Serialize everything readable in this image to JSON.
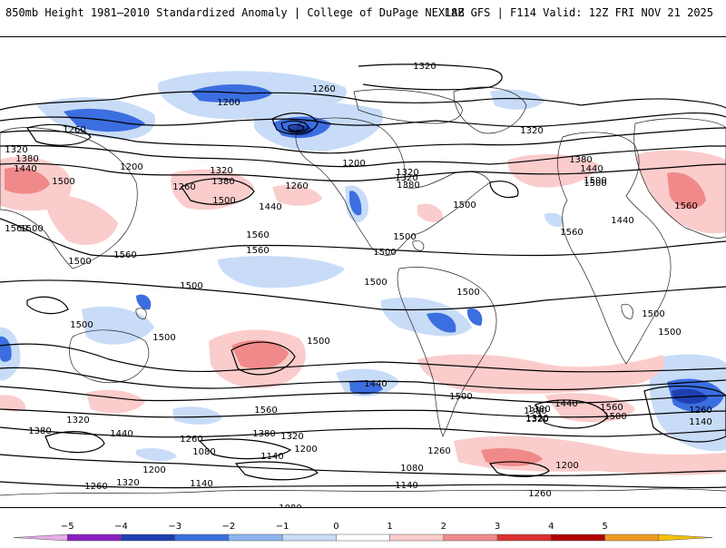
{
  "header": {
    "title": "850mb Height 1981–2010 Standardized Anomaly | College of DuPage NEXLAB",
    "valid": "18Z GFS | F114 Valid: 12Z FRI NOV 21 2025"
  },
  "colorbar": {
    "ticks": [
      "−5",
      "−4",
      "−3",
      "−2",
      "−1",
      "0",
      "1",
      "2",
      "3",
      "4",
      "5"
    ],
    "colors": [
      "#e7aee8",
      "#8a1fc4",
      "#1e3fb0",
      "#3b6ee0",
      "#8db4f0",
      "#c8dcf8",
      "#ffffff",
      "#fbcccc",
      "#f08a8a",
      "#d93030",
      "#b00000",
      "#f09a20",
      "#f5c000"
    ]
  },
  "contour_labels": [
    {
      "t": "1320"
    },
    {
      "t": "1260"
    },
    {
      "t": "1260"
    },
    {
      "t": "1200"
    },
    {
      "t": "1200"
    },
    {
      "t": "1320"
    },
    {
      "t": "1380"
    },
    {
      "t": "1440"
    },
    {
      "t": "1500"
    },
    {
      "t": "1260"
    },
    {
      "t": "1320"
    },
    {
      "t": "1380"
    },
    {
      "t": "1260"
    },
    {
      "t": "1200"
    },
    {
      "t": "1320"
    },
    {
      "t": "1380"
    },
    {
      "t": "1440"
    },
    {
      "t": "1500"
    },
    {
      "t": "1320"
    },
    {
      "t": "1320"
    },
    {
      "t": "1380"
    },
    {
      "t": "1500"
    },
    {
      "t": "1440"
    },
    {
      "t": "1560"
    },
    {
      "t": "1560"
    },
    {
      "t": "1560"
    },
    {
      "t": "1500"
    },
    {
      "t": "1500"
    },
    {
      "t": "1560"
    },
    {
      "t": "1560"
    },
    {
      "t": "1560"
    },
    {
      "t": "1500"
    },
    {
      "t": "1500"
    },
    {
      "t": "1500"
    },
    {
      "t": "1440"
    },
    {
      "t": "1500"
    },
    {
      "t": "1500"
    },
    {
      "t": "1500"
    },
    {
      "t": "1500"
    },
    {
      "t": "1500"
    },
    {
      "t": "1500"
    },
    {
      "t": "1500"
    },
    {
      "t": "1500"
    },
    {
      "t": "1560"
    },
    {
      "t": "1440"
    },
    {
      "t": "1500"
    },
    {
      "t": "1380"
    },
    {
      "t": "1320"
    },
    {
      "t": "1440"
    },
    {
      "t": "1380"
    },
    {
      "t": "1320"
    },
    {
      "t": "1260"
    },
    {
      "t": "1200"
    },
    {
      "t": "1140"
    },
    {
      "t": "1080"
    },
    {
      "t": "1200"
    },
    {
      "t": "1140"
    },
    {
      "t": "1260"
    },
    {
      "t": "1320"
    },
    {
      "t": "1380"
    },
    {
      "t": "1320"
    },
    {
      "t": "1260"
    },
    {
      "t": "1080"
    },
    {
      "t": "1140"
    },
    {
      "t": "1080"
    },
    {
      "t": "1200"
    },
    {
      "t": "1260"
    },
    {
      "t": "1260"
    },
    {
      "t": "1320"
    },
    {
      "t": "1380"
    },
    {
      "t": "1440"
    },
    {
      "t": "1560"
    },
    {
      "t": "1500"
    },
    {
      "t": "1200"
    },
    {
      "t": "1260"
    },
    {
      "t": "1140"
    },
    {
      "t": "1500"
    }
  ]
}
